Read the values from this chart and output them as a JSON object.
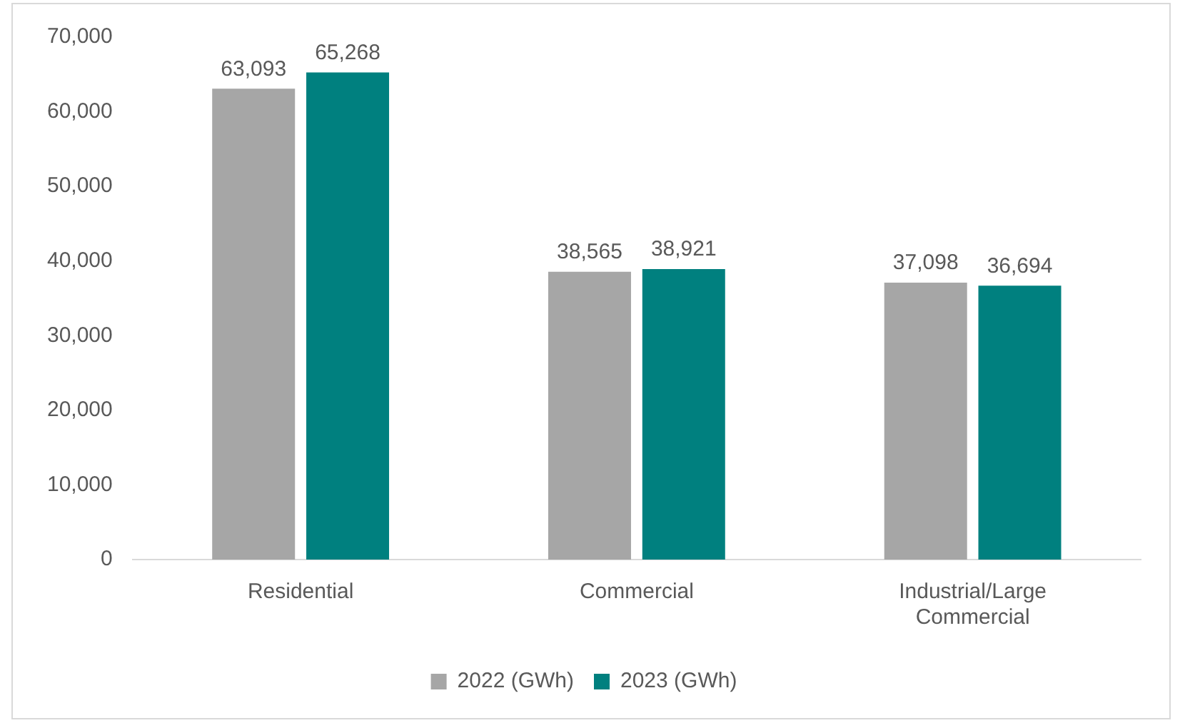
{
  "chart_data": {
    "type": "bar",
    "categories": [
      "Residential",
      "Commercial",
      "Industrial/Large Commercial"
    ],
    "series": [
      {
        "name": "2022 (GWh)",
        "color": "#a6a6a6",
        "values": [
          63093,
          38565,
          37098
        ],
        "value_labels": [
          "63,093",
          "38,565",
          "37,098"
        ]
      },
      {
        "name": "2023 (GWh)",
        "color": "#00807f",
        "values": [
          65268,
          38921,
          36694
        ],
        "value_labels": [
          "65,268",
          "38,921",
          "36,694"
        ]
      }
    ],
    "ylim": [
      0,
      70000
    ],
    "yticks": [
      {
        "value": 0,
        "label": "0"
      },
      {
        "value": 10000,
        "label": "10,000"
      },
      {
        "value": 20000,
        "label": "20,000"
      },
      {
        "value": 30000,
        "label": "30,000"
      },
      {
        "value": 40000,
        "label": "40,000"
      },
      {
        "value": 50000,
        "label": "50,000"
      },
      {
        "value": 60000,
        "label": "60,000"
      },
      {
        "value": 70000,
        "label": "70,000"
      }
    ],
    "grid": false,
    "legend": "bottom"
  }
}
